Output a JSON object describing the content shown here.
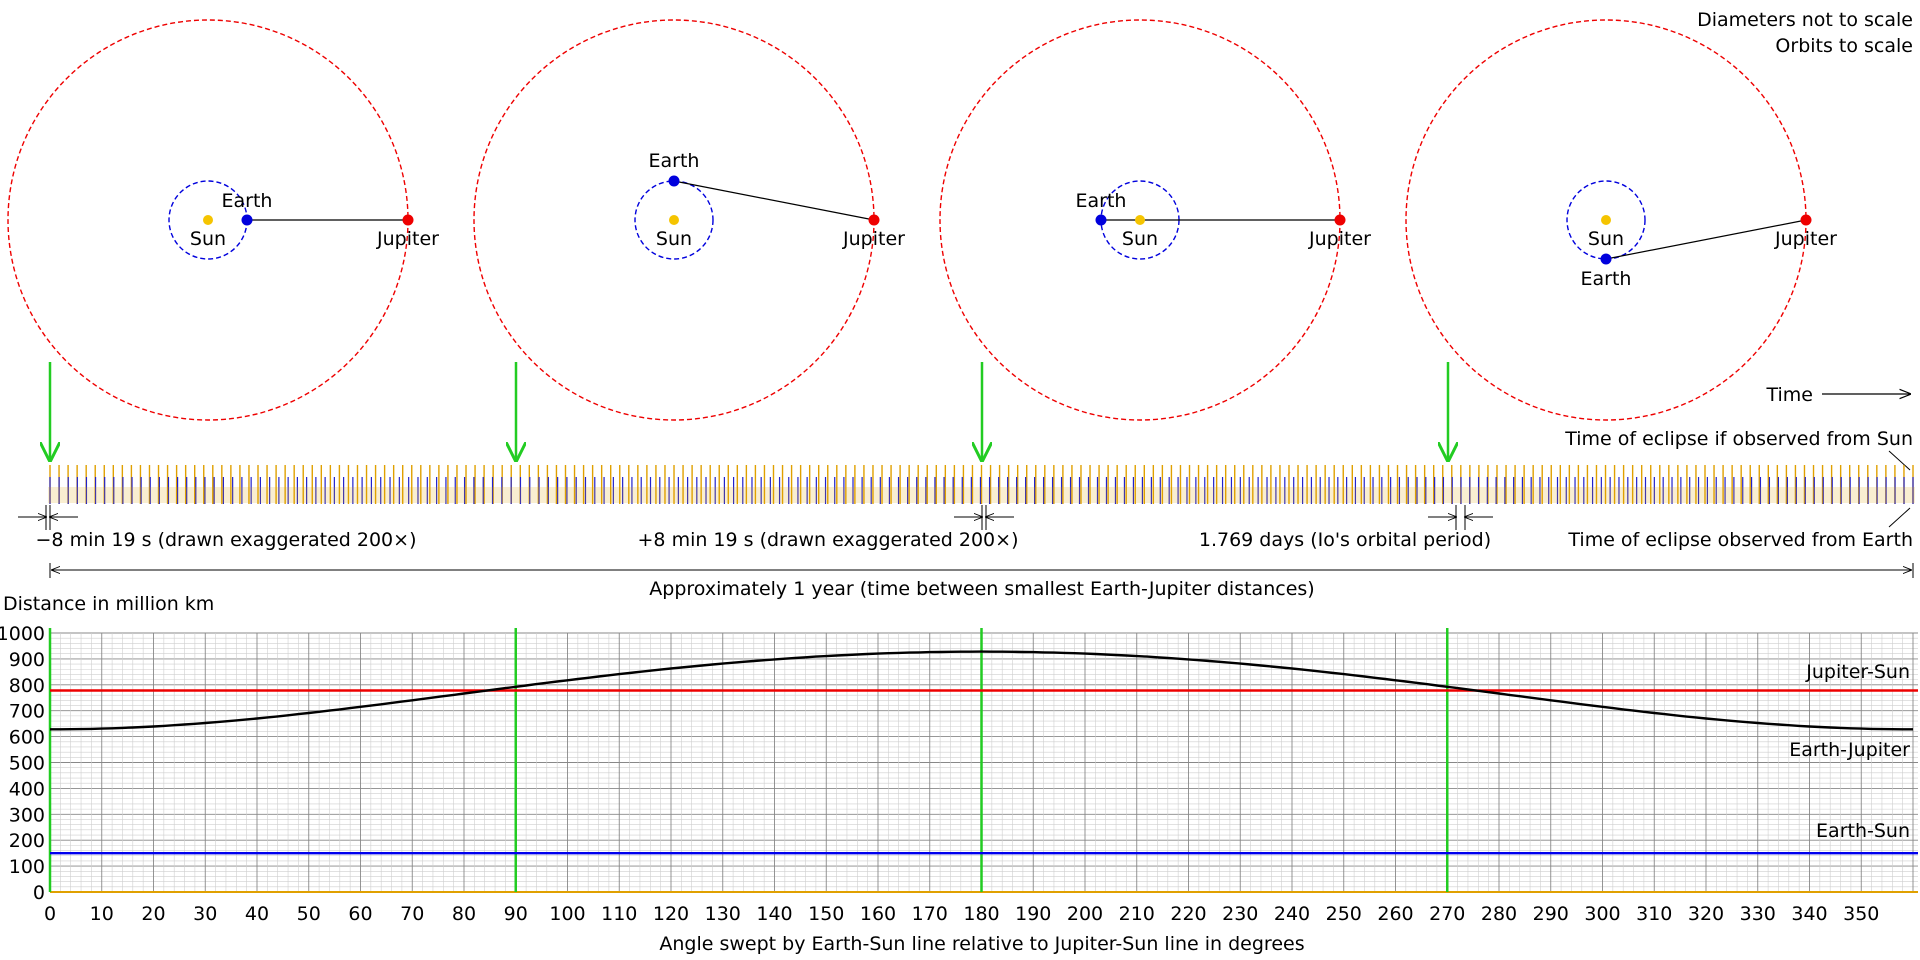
{
  "header": {
    "note_diameters": "Diameters not to scale",
    "note_orbits": "Orbits to scale"
  },
  "orbit_panels": [
    {
      "earth_angle_deg": 0,
      "labels": {
        "sun": "Sun",
        "earth": "Earth",
        "jupiter": "Jupiter"
      }
    },
    {
      "earth_angle_deg": 90,
      "labels": {
        "sun": "Sun",
        "earth": "Earth",
        "jupiter": "Jupiter"
      }
    },
    {
      "earth_angle_deg": 180,
      "labels": {
        "sun": "Sun",
        "earth": "Earth",
        "jupiter": "Jupiter"
      }
    },
    {
      "earth_angle_deg": 270,
      "labels": {
        "sun": "Sun",
        "earth": "Earth",
        "jupiter": "Jupiter"
      }
    }
  ],
  "colors": {
    "sun": "#f5c400",
    "earth": "#0000dd",
    "jupiter": "#ee0000",
    "marker_green": "#22cc22",
    "sun_ticks": "#e0a000",
    "earth_ticks": "#2222cc",
    "curve": "#000000"
  },
  "timeline": {
    "time_label": "Time",
    "sun_eclipse_label": "Time of eclipse if observed from Sun",
    "earth_eclipse_label": "Time of eclipse observed from Earth",
    "delay_minus_label": "−8 min 19 s (drawn exaggerated 200×)",
    "delay_plus_label": "+8 min 19 s (drawn exaggerated 200×)",
    "io_period_label": "1.769 days (Io's orbital period)",
    "year_label": "Approximately 1 year (time between smallest Earth-Jupiter distances)"
  },
  "chart_data": {
    "type": "line",
    "ylabel": "Distance in million km",
    "xlabel": "Angle swept by Earth-Sun line relative to Jupiter-Sun line in degrees",
    "xlim": [
      0,
      360
    ],
    "ylim": [
      0,
      1000
    ],
    "x_ticks": [
      0,
      10,
      20,
      30,
      40,
      50,
      60,
      70,
      80,
      90,
      100,
      110,
      120,
      130,
      140,
      150,
      160,
      170,
      180,
      190,
      200,
      210,
      220,
      230,
      240,
      250,
      260,
      270,
      280,
      290,
      300,
      310,
      320,
      330,
      340,
      350
    ],
    "y_ticks": [
      0,
      100,
      200,
      300,
      400,
      500,
      600,
      700,
      800,
      900,
      1000
    ],
    "grid": true,
    "vertical_markers": [
      0,
      90,
      180,
      270
    ],
    "series": [
      {
        "name": "Jupiter-Sun",
        "constant": 778,
        "color": "#ee0000"
      },
      {
        "name": "Earth-Sun",
        "constant": 150,
        "color": "#0000ee"
      },
      {
        "name": "Earth-Jupiter",
        "color": "#000000",
        "x": [
          0,
          30,
          60,
          90,
          120,
          150,
          180,
          210,
          240,
          270,
          300,
          330,
          360
        ],
        "values": [
          628,
          649,
          710,
          792,
          865,
          910,
          928,
          910,
          865,
          792,
          710,
          649,
          628
        ]
      }
    ]
  }
}
